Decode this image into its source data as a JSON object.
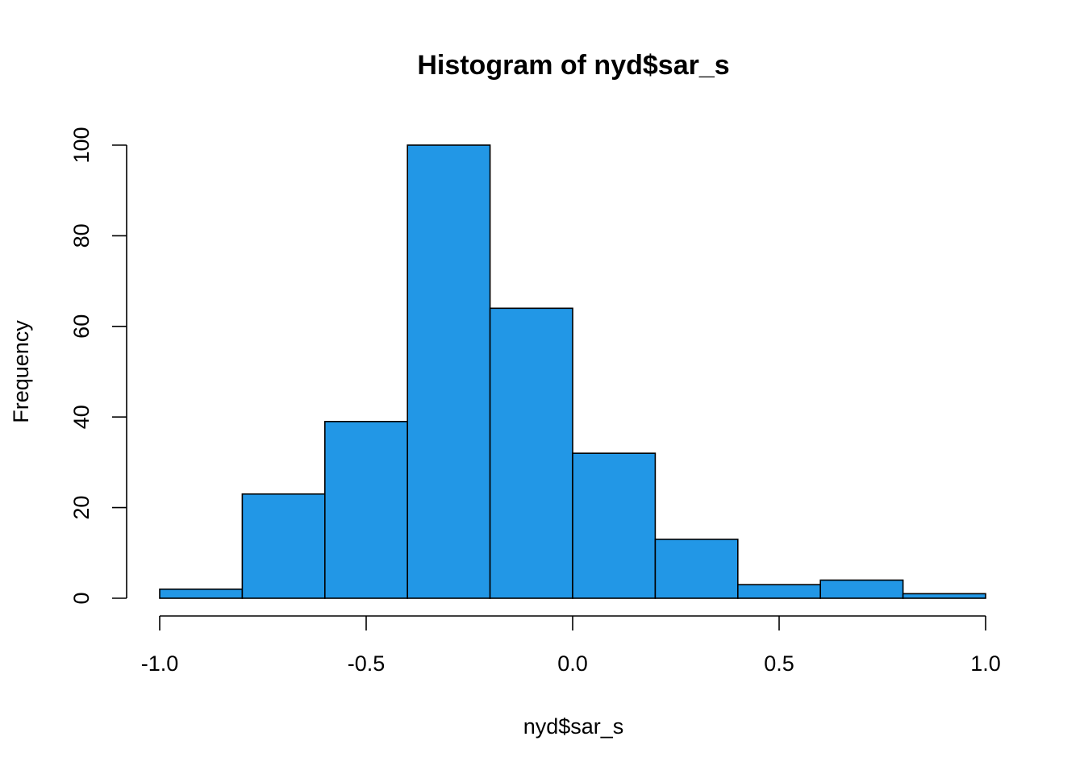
{
  "chart_data": {
    "type": "bar",
    "title": "Histogram of nyd$sar_s",
    "xlabel": "nyd$sar_s",
    "ylabel": "Frequency",
    "bins": [
      {
        "x0": -1.0,
        "x1": -0.8,
        "count": 2
      },
      {
        "x0": -0.8,
        "x1": -0.6,
        "count": 23
      },
      {
        "x0": -0.6,
        "x1": -0.4,
        "count": 39
      },
      {
        "x0": -0.4,
        "x1": -0.2,
        "count": 100
      },
      {
        "x0": -0.2,
        "x1": 0.0,
        "count": 64
      },
      {
        "x0": 0.0,
        "x1": 0.2,
        "count": 32
      },
      {
        "x0": 0.2,
        "x1": 0.4,
        "count": 13
      },
      {
        "x0": 0.4,
        "x1": 0.6,
        "count": 3
      },
      {
        "x0": 0.6,
        "x1": 0.8,
        "count": 4
      },
      {
        "x0": 0.8,
        "x1": 1.0,
        "count": 1
      }
    ],
    "xlim": [
      -1.0,
      1.0
    ],
    "ylim": [
      0,
      100
    ],
    "x_ticks": [
      -1.0,
      -0.5,
      0.0,
      0.5,
      1.0
    ],
    "x_tick_labels": [
      "-1.0",
      "-0.5",
      "0.0",
      "0.5",
      "1.0"
    ],
    "y_ticks": [
      0,
      20,
      40,
      60,
      80,
      100
    ],
    "y_tick_labels": [
      "0",
      "20",
      "40",
      "60",
      "80",
      "100"
    ],
    "bar_color": "#2297E6",
    "grid": false
  }
}
